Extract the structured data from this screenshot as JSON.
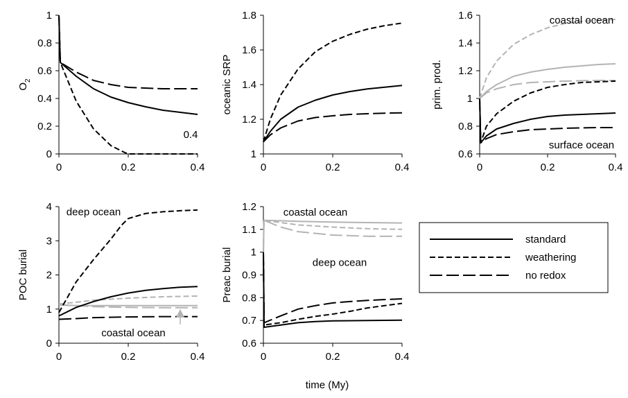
{
  "xlabel": "time (My)",
  "legend": {
    "placement": "bottom-right",
    "items": [
      {
        "label": "standard",
        "dash": "solid"
      },
      {
        "label": "weathering",
        "dash": "short-dash"
      },
      {
        "label": "no redox",
        "dash": "long-dash"
      }
    ]
  },
  "colors": {
    "black": "#000000",
    "gray": "#b3b3b3"
  },
  "chart_data": [
    {
      "id": "o2",
      "type": "line",
      "ylabel_main": "O",
      "ylabel_sub": "2",
      "xlim": [
        0,
        0.4
      ],
      "ylim": [
        0,
        1
      ],
      "xticks": [
        "0",
        "0.2",
        "0.4"
      ],
      "yticks": [
        "0",
        "0.2",
        "0.4",
        "0.6",
        "0.8",
        "1"
      ],
      "annotations": [
        {
          "text": "0.4",
          "x": 0.38,
          "y": 0.14
        }
      ],
      "series": [
        {
          "style": "standard",
          "color": "black",
          "x": [
            0,
            0.004,
            0.05,
            0.1,
            0.15,
            0.2,
            0.25,
            0.3,
            0.35,
            0.4
          ],
          "y": [
            1,
            0.66,
            0.56,
            0.47,
            0.41,
            0.37,
            0.34,
            0.315,
            0.3,
            0.285
          ]
        },
        {
          "style": "weathering",
          "color": "black",
          "x": [
            0,
            0.004,
            0.05,
            0.1,
            0.15,
            0.19,
            0.2,
            0.3,
            0.4
          ],
          "y": [
            1,
            0.66,
            0.38,
            0.18,
            0.06,
            0.01,
            0,
            0,
            0
          ]
        },
        {
          "style": "no redox",
          "color": "black",
          "x": [
            0,
            0.004,
            0.05,
            0.1,
            0.15,
            0.2,
            0.3,
            0.4
          ],
          "y": [
            1,
            0.66,
            0.59,
            0.53,
            0.5,
            0.48,
            0.47,
            0.47
          ]
        }
      ]
    },
    {
      "id": "srp",
      "type": "line",
      "ylabel_main": "oceanic SRP",
      "ylabel_sub": "",
      "xlim": [
        0,
        0.4
      ],
      "ylim": [
        1,
        1.8
      ],
      "xticks": [
        "0",
        "0.2",
        "0.4"
      ],
      "yticks": [
        "1",
        "1.2",
        "1.4",
        "1.6",
        "1.8"
      ],
      "annotations": [],
      "series": [
        {
          "style": "standard",
          "color": "black",
          "x": [
            0,
            0.02,
            0.05,
            0.1,
            0.15,
            0.2,
            0.25,
            0.3,
            0.35,
            0.4
          ],
          "y": [
            1.07,
            1.13,
            1.2,
            1.27,
            1.31,
            1.34,
            1.36,
            1.375,
            1.385,
            1.395
          ]
        },
        {
          "style": "weathering",
          "color": "black",
          "x": [
            0,
            0.02,
            0.05,
            0.1,
            0.15,
            0.2,
            0.25,
            0.3,
            0.35,
            0.4
          ],
          "y": [
            1.07,
            1.2,
            1.34,
            1.49,
            1.59,
            1.65,
            1.69,
            1.72,
            1.74,
            1.755
          ]
        },
        {
          "style": "no redox",
          "color": "black",
          "x": [
            0,
            0.02,
            0.05,
            0.1,
            0.15,
            0.2,
            0.25,
            0.3,
            0.35,
            0.4
          ],
          "y": [
            1.07,
            1.11,
            1.15,
            1.19,
            1.21,
            1.22,
            1.228,
            1.232,
            1.235,
            1.237
          ]
        }
      ]
    },
    {
      "id": "primprod",
      "type": "line",
      "ylabel_main": "prim. prod.",
      "ylabel_sub": "",
      "xlim": [
        0,
        0.4
      ],
      "ylim": [
        0.6,
        1.6
      ],
      "xticks": [
        "0",
        "0.2",
        "0.4"
      ],
      "yticks": [
        "0.6",
        "0.8",
        "1",
        "1.2",
        "1.4",
        "1.6"
      ],
      "annotations": [
        {
          "text": "coastal ocean",
          "x": 0.3,
          "y": 1.565
        },
        {
          "text": "surface ocean",
          "x": 0.3,
          "y": 0.665
        }
      ],
      "series": [
        {
          "style": "standard",
          "color": "gray",
          "x": [
            0,
            0.02,
            0.05,
            0.1,
            0.15,
            0.2,
            0.25,
            0.3,
            0.35,
            0.4
          ],
          "y": [
            1,
            1.05,
            1.1,
            1.16,
            1.19,
            1.21,
            1.225,
            1.235,
            1.245,
            1.25
          ]
        },
        {
          "style": "weathering",
          "color": "gray",
          "x": [
            0,
            0.02,
            0.05,
            0.1,
            0.15,
            0.2,
            0.25,
            0.3,
            0.35,
            0.4
          ],
          "y": [
            1,
            1.15,
            1.27,
            1.39,
            1.46,
            1.51,
            1.54,
            1.555,
            1.565,
            1.57
          ]
        },
        {
          "style": "no redox",
          "color": "gray",
          "x": [
            0,
            0.02,
            0.05,
            0.1,
            0.15,
            0.2,
            0.25,
            0.3,
            0.35,
            0.4
          ],
          "y": [
            1,
            1.04,
            1.07,
            1.1,
            1.115,
            1.12,
            1.125,
            1.128,
            1.13,
            1.13
          ]
        },
        {
          "style": "standard",
          "color": "black",
          "x": [
            0,
            0.003,
            0.02,
            0.05,
            0.1,
            0.15,
            0.2,
            0.25,
            0.3,
            0.35,
            0.4
          ],
          "y": [
            1,
            0.68,
            0.73,
            0.78,
            0.82,
            0.85,
            0.87,
            0.88,
            0.885,
            0.89,
            0.895
          ]
        },
        {
          "style": "weathering",
          "color": "black",
          "x": [
            0,
            0.003,
            0.02,
            0.05,
            0.1,
            0.15,
            0.2,
            0.25,
            0.3,
            0.35,
            0.4
          ],
          "y": [
            1,
            0.68,
            0.8,
            0.89,
            0.98,
            1.04,
            1.08,
            1.1,
            1.115,
            1.12,
            1.125
          ]
        },
        {
          "style": "no redox",
          "color": "black",
          "x": [
            0,
            0.003,
            0.02,
            0.05,
            0.1,
            0.15,
            0.2,
            0.25,
            0.3,
            0.35,
            0.4
          ],
          "y": [
            1,
            0.68,
            0.71,
            0.74,
            0.76,
            0.775,
            0.78,
            0.785,
            0.788,
            0.79,
            0.79
          ]
        }
      ]
    },
    {
      "id": "pocburial",
      "type": "line",
      "ylabel_main": "POC burial",
      "ylabel_sub": "",
      "xlim": [
        0,
        0.4
      ],
      "ylim": [
        0,
        4
      ],
      "xticks": [
        "0",
        "0.2",
        "0.4"
      ],
      "yticks": [
        "0",
        "1",
        "2",
        "3",
        "4"
      ],
      "annotations": [
        {
          "text": "deep ocean",
          "x": 0.1,
          "y": 3.85
        },
        {
          "text": "coastal ocean",
          "x": 0.215,
          "y": 0.3
        }
      ],
      "arrow": {
        "x": 0.35,
        "y_from": 0.55,
        "y_to": 1.0
      },
      "series": [
        {
          "style": "standard",
          "color": "gray",
          "x": [
            0,
            0.05,
            0.1,
            0.2,
            0.3,
            0.4
          ],
          "y": [
            1.12,
            1.1,
            1.1,
            1.1,
            1.1,
            1.1
          ]
        },
        {
          "style": "weathering",
          "color": "gray",
          "x": [
            0,
            0.05,
            0.1,
            0.2,
            0.3,
            0.4
          ],
          "y": [
            1.15,
            1.2,
            1.26,
            1.32,
            1.36,
            1.38
          ]
        },
        {
          "style": "no redox",
          "color": "gray",
          "x": [
            0,
            0.05,
            0.1,
            0.2,
            0.3,
            0.4
          ],
          "y": [
            1.12,
            1.1,
            1.07,
            1.05,
            1.04,
            1.04
          ]
        },
        {
          "style": "standard",
          "color": "black",
          "x": [
            0,
            0.05,
            0.1,
            0.15,
            0.2,
            0.25,
            0.3,
            0.35,
            0.4
          ],
          "y": [
            0.8,
            1.05,
            1.22,
            1.36,
            1.47,
            1.55,
            1.6,
            1.64,
            1.66
          ]
        },
        {
          "style": "weathering",
          "color": "black",
          "x": [
            0,
            0.05,
            0.1,
            0.15,
            0.18,
            0.2,
            0.25,
            0.3,
            0.35,
            0.4
          ],
          "y": [
            0.9,
            1.8,
            2.45,
            3.05,
            3.45,
            3.65,
            3.8,
            3.85,
            3.88,
            3.9
          ]
        },
        {
          "style": "no redox",
          "color": "black",
          "x": [
            0,
            0.05,
            0.1,
            0.2,
            0.3,
            0.4
          ],
          "y": [
            0.7,
            0.72,
            0.75,
            0.77,
            0.78,
            0.78
          ]
        }
      ]
    },
    {
      "id": "preacburial",
      "type": "line",
      "ylabel_main": "Preac burial",
      "ylabel_sub": "",
      "xlim": [
        0,
        0.4
      ],
      "ylim": [
        0.6,
        1.2
      ],
      "xticks": [
        "0",
        "0.2",
        "0.4"
      ],
      "yticks": [
        "0.6",
        "0.7",
        "0.8",
        "0.9",
        "1",
        "1.1",
        "1.2"
      ],
      "annotations": [
        {
          "text": "coastal ocean",
          "x": 0.15,
          "y": 1.175
        },
        {
          "text": "deep ocean",
          "x": 0.22,
          "y": 0.955
        }
      ],
      "series": [
        {
          "style": "standard",
          "color": "gray",
          "x": [
            0,
            0.0015,
            0.05,
            0.1,
            0.2,
            0.3,
            0.4
          ],
          "y": [
            1,
            1.14,
            1.138,
            1.135,
            1.132,
            1.13,
            1.128
          ]
        },
        {
          "style": "weathering",
          "color": "gray",
          "x": [
            0,
            0.0015,
            0.05,
            0.1,
            0.2,
            0.3,
            0.4
          ],
          "y": [
            1,
            1.14,
            1.13,
            1.12,
            1.11,
            1.103,
            1.1
          ]
        },
        {
          "style": "no redox",
          "color": "gray",
          "x": [
            0,
            0.0015,
            0.05,
            0.1,
            0.2,
            0.3,
            0.4
          ],
          "y": [
            1,
            1.14,
            1.11,
            1.09,
            1.075,
            1.07,
            1.07
          ]
        },
        {
          "style": "standard",
          "color": "black",
          "x": [
            0,
            0.002,
            0.05,
            0.1,
            0.15,
            0.2,
            0.3,
            0.4
          ],
          "y": [
            1,
            0.67,
            0.68,
            0.69,
            0.695,
            0.698,
            0.7,
            0.701
          ]
        },
        {
          "style": "weathering",
          "color": "black",
          "x": [
            0,
            0.002,
            0.05,
            0.1,
            0.15,
            0.2,
            0.25,
            0.3,
            0.35,
            0.4
          ],
          "y": [
            1,
            0.68,
            0.69,
            0.705,
            0.718,
            0.728,
            0.74,
            0.755,
            0.765,
            0.775
          ]
        },
        {
          "style": "no redox",
          "color": "black",
          "x": [
            0,
            0.002,
            0.05,
            0.1,
            0.15,
            0.2,
            0.25,
            0.3,
            0.35,
            0.4
          ],
          "y": [
            1,
            0.69,
            0.72,
            0.75,
            0.765,
            0.777,
            0.783,
            0.788,
            0.792,
            0.795
          ]
        }
      ]
    }
  ]
}
